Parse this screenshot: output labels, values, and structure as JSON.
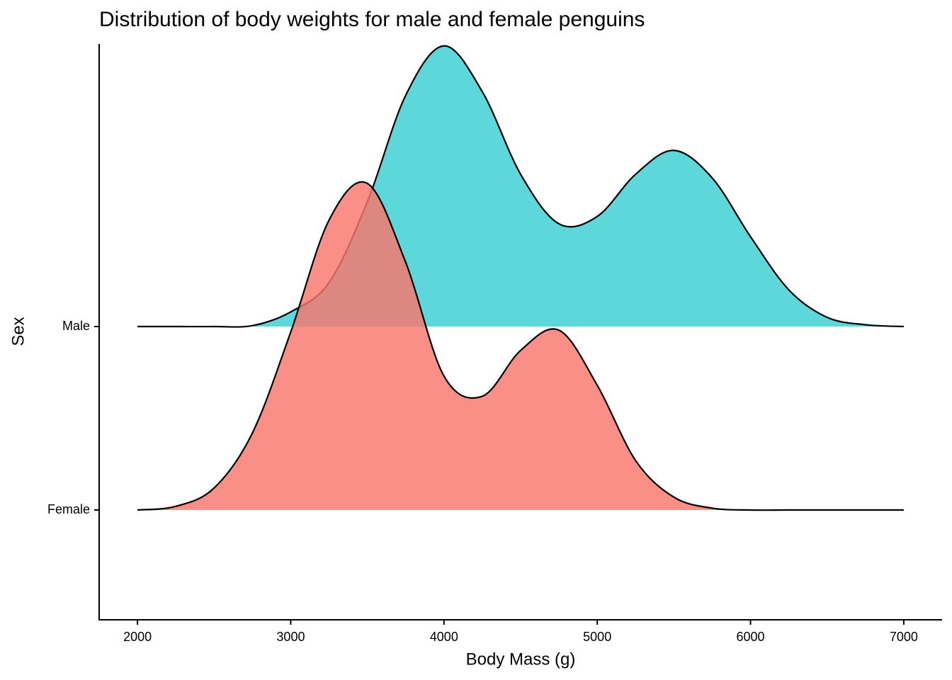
{
  "chart_data": {
    "type": "ridgeline",
    "title": "Distribution of body weights for male and female penguins",
    "x_label": "Body Mass (g)",
    "y_label": "Sex",
    "categories": [
      "Female",
      "Male"
    ],
    "x": [
      2000,
      2250,
      2500,
      2750,
      3000,
      3250,
      3500,
      3750,
      4000,
      4250,
      4500,
      4750,
      5000,
      5250,
      5500,
      5750,
      6000,
      6250,
      6500,
      6750,
      7000
    ],
    "series": [
      {
        "name": "Male",
        "color": "#00BFC4",
        "alpha": 0.63,
        "values": [
          0,
          0,
          0,
          0.005,
          0.08,
          0.24,
          0.68,
          1.26,
          1.53,
          1.28,
          0.83,
          0.56,
          0.6,
          0.83,
          0.96,
          0.81,
          0.49,
          0.2,
          0.05,
          0.01,
          0
        ]
      },
      {
        "name": "Female",
        "color": "#F8766D",
        "alpha": 0.82,
        "values": [
          0,
          0.02,
          0.12,
          0.42,
          0.97,
          1.58,
          1.78,
          1.35,
          0.73,
          0.62,
          0.87,
          0.98,
          0.68,
          0.27,
          0.07,
          0.01,
          0,
          0,
          0,
          0,
          0
        ]
      }
    ],
    "xlim": [
      1750,
      7250
    ],
    "xticks": [
      2000,
      3000,
      4000,
      5000,
      6000,
      7000
    ]
  }
}
